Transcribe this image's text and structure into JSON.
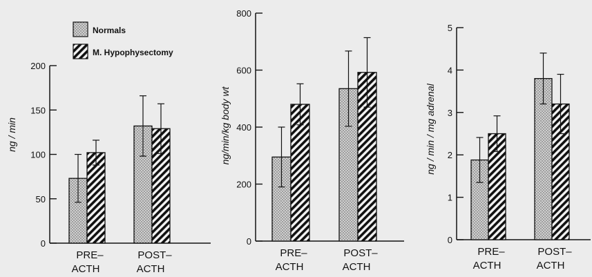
{
  "legend": {
    "items": [
      {
        "label": "Normals",
        "pattern": "dots"
      },
      {
        "label": "M. Hypophysectomy",
        "pattern": "hatch"
      }
    ]
  },
  "chart_data": [
    {
      "type": "bar",
      "categories": [
        [
          "PRE–",
          "ACTH"
        ],
        [
          "POST–",
          "ACTH"
        ]
      ],
      "ylabel": "ng / min",
      "ylim": [
        0,
        200
      ],
      "yticks": [
        0,
        50,
        100,
        150,
        200
      ],
      "series": [
        {
          "name": "Normals",
          "values": [
            73,
            132
          ],
          "errors": [
            27,
            34
          ]
        },
        {
          "name": "M. Hypophysectomy",
          "values": [
            102,
            129
          ],
          "errors": [
            14,
            28
          ]
        }
      ]
    },
    {
      "type": "bar",
      "categories": [
        [
          "PRE–",
          "ACTH"
        ],
        [
          "POST–",
          "ACTH"
        ]
      ],
      "ylabel": "ng/min/kg body wt",
      "ylim": [
        0,
        800
      ],
      "yticks": [
        0,
        200,
        400,
        600,
        800
      ],
      "series": [
        {
          "name": "Normals",
          "values": [
            295,
            535
          ],
          "errors": [
            105,
            132
          ]
        },
        {
          "name": "M. Hypophysectomy",
          "values": [
            480,
            592
          ],
          "errors": [
            72,
            122
          ]
        }
      ]
    },
    {
      "type": "bar",
      "categories": [
        [
          "PRE–",
          "ACTH"
        ],
        [
          "POST–",
          "ACTH"
        ]
      ],
      "ylabel": "ng / min / mg adrenal",
      "ylim": [
        0,
        5
      ],
      "yticks": [
        0,
        1,
        2,
        3,
        4,
        5
      ],
      "series": [
        {
          "name": "Normals",
          "values": [
            1.88,
            3.8
          ],
          "errors": [
            0.53,
            0.6
          ]
        },
        {
          "name": "M. Hypophysectomy",
          "values": [
            2.5,
            3.2
          ],
          "errors": [
            0.42,
            0.7
          ]
        }
      ]
    }
  ]
}
